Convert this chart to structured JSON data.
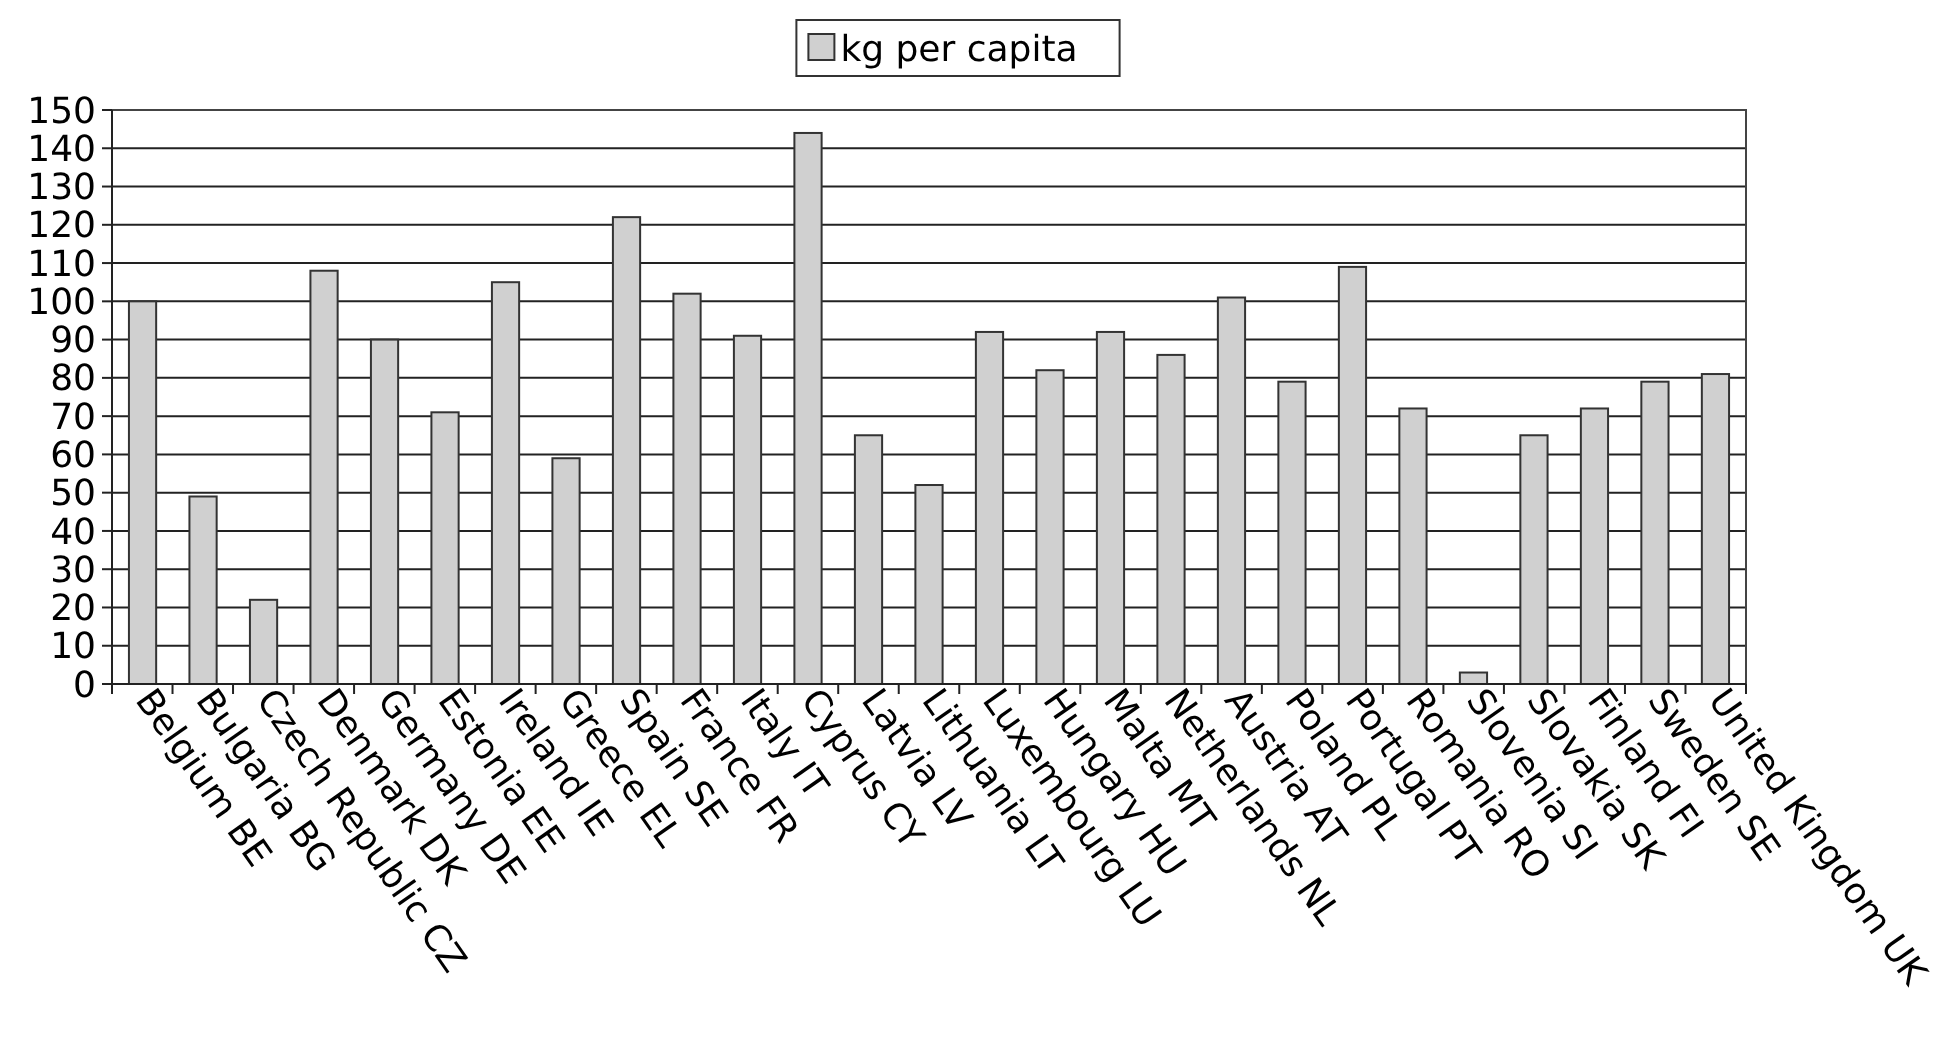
{
  "chart_data": {
    "type": "bar",
    "categories": [
      "Belgium BE",
      "Bulgaria BG",
      "Czech Republic CZ",
      "Denmark DK",
      "Germany DE",
      "Estonia EE",
      "Ireland IE",
      "Greece EL",
      "Spain SE",
      "France FR",
      "Italy IT",
      "Cyprus CY",
      "Latvia LV",
      "Lithuania LT",
      "Luxembourg LU",
      "Hungary HU",
      "Malta MT",
      "Netherlands NL",
      "Austria AT",
      "Poland PL",
      "Portugal PT",
      "Romania RO",
      "Slovenia SI",
      "Slovakia SK",
      "Finland FI",
      "Sweden SE",
      "United Kingdom UK"
    ],
    "series": [
      {
        "name": "kg per capita",
        "color": "#d0d0d0",
        "values": [
          100,
          49,
          22,
          108,
          90,
          71,
          105,
          59,
          122,
          102,
          91,
          144,
          65,
          52,
          92,
          82,
          92,
          86,
          101,
          79,
          109,
          72,
          3,
          65,
          72,
          79,
          81
        ]
      }
    ],
    "ylim": [
      0,
      150
    ],
    "yticks": [
      0,
      10,
      20,
      30,
      40,
      50,
      60,
      70,
      80,
      90,
      100,
      110,
      120,
      130,
      140,
      150
    ],
    "grid": "y",
    "legend": "top"
  }
}
